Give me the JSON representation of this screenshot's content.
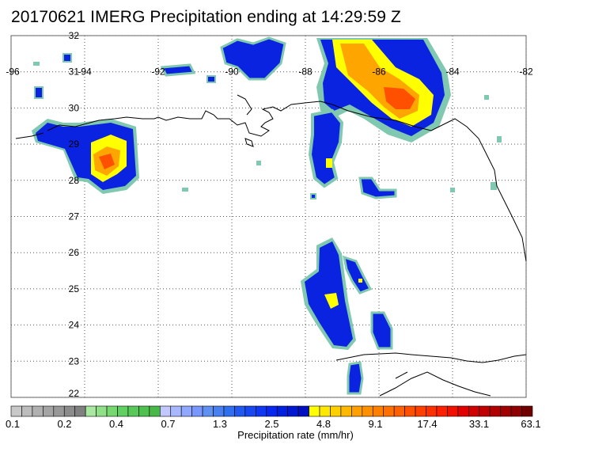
{
  "title": "20170621 IMERG Precipitation ending at 14:29:59 Z",
  "map": {
    "lon_range": [
      -96,
      -82
    ],
    "lat_range": [
      22,
      32
    ],
    "lon_ticks": [
      "-96",
      "-94",
      "-92",
      "-90",
      "-88",
      "-86",
      "-84",
      "-82"
    ],
    "lat_ticks": [
      "32",
      "31",
      "30",
      "29",
      "28",
      "27",
      "26",
      "25",
      "24",
      "23",
      "22"
    ],
    "grid": "dotted",
    "coastline_color": "#000000"
  },
  "colorbar": {
    "title": "Precipitation rate (mm/hr)",
    "tick_labels": [
      "0.1",
      "0.2",
      "0.4",
      "0.7",
      "1.3",
      "2.5",
      "4.8",
      "9.1",
      "17.4",
      "33.1",
      "63.1"
    ],
    "colors": [
      "#c8c8c8",
      "#bcbcbc",
      "#b0b0b0",
      "#a4a4a4",
      "#989898",
      "#8c8c8c",
      "#808080",
      "#a8e8a0",
      "#90e088",
      "#78d870",
      "#60d060",
      "#58c858",
      "#50c050",
      "#48b848",
      "#c0c8ff",
      "#a8b8ff",
      "#90a8ff",
      "#7898ff",
      "#6090f0",
      "#4880f0",
      "#3070f0",
      "#2058f0",
      "#1848f0",
      "#1038f0",
      "#0828f0",
      "#0020e0",
      "#0018d0",
      "#0010c0",
      "#ffff00",
      "#ffe800",
      "#ffd000",
      "#ffb800",
      "#ffa000",
      "#ff9000",
      "#ff8000",
      "#ff7000",
      "#ff6000",
      "#ff5000",
      "#ff4000",
      "#ff3000",
      "#ff2000",
      "#f01000",
      "#e00000",
      "#d00000",
      "#c00000",
      "#b00000",
      "#a00000",
      "#900000",
      "#700000"
    ]
  },
  "precip_levels": {
    "light": "#80c8b0",
    "blue": "#0a23e0",
    "yellow": "#ffff00",
    "orange": "#ffa500",
    "red": "#ff5000"
  }
}
